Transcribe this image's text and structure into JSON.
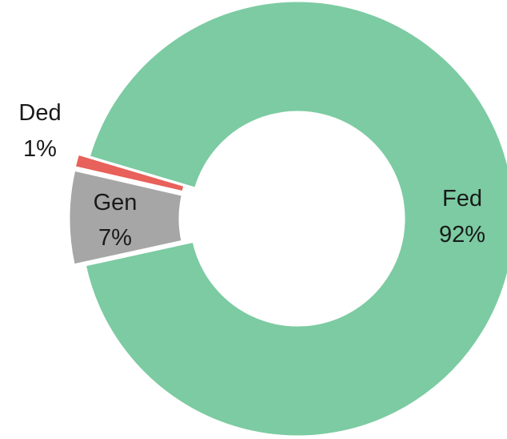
{
  "chart_data": {
    "type": "pie",
    "style": "donut",
    "slices": [
      {
        "label": "Fed",
        "value": 92,
        "value_label": "92%",
        "color": "#7ccba2",
        "exploded": false
      },
      {
        "label": "Ded",
        "value": 1,
        "value_label": "1%",
        "color": "#e8615a",
        "exploded": true
      },
      {
        "label": "Gen",
        "value": 7,
        "value_label": "7%",
        "color": "#a6a6a6",
        "exploded": true
      }
    ]
  }
}
